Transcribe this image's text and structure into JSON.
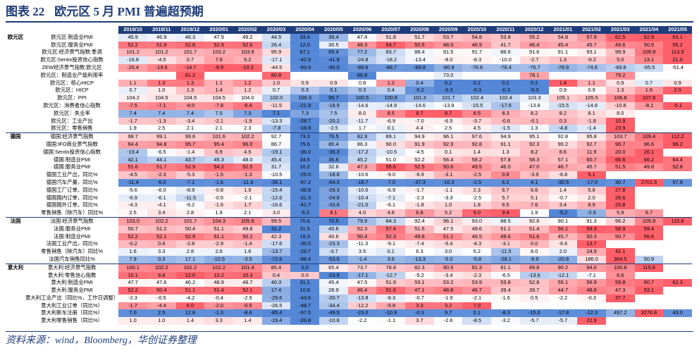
{
  "title": {
    "figure_no": "图表 22",
    "text": "欧元区 5 月 PMI 普遍超预期"
  },
  "source": "资料来源：wind，Bloomberg，华创证券整理",
  "colors": {
    "header": "#1f3d7a"
  },
  "months": [
    "2019/10",
    "2019/11",
    "2019/12",
    "2020/01",
    "2020/02",
    "2020/03",
    "2020/04",
    "2020/05",
    "2020/06",
    "2020/07",
    "2020/08",
    "2020/09",
    "2020/10",
    "2020/11",
    "2020/12",
    "2021/01",
    "2021/02",
    "2021/03",
    "2021/04",
    "2021/05"
  ],
  "rows": [
    {
      "group": "欧元区",
      "label": "欧元区:制造业PMI",
      "values": [
        "45.9",
        "46.9",
        "46.3",
        "47.9",
        "49.2",
        "44.5",
        "33.4",
        "39.4",
        "47.4",
        "51.8",
        "51.7",
        "53.7",
        "54.8",
        "53.8",
        "55.2",
        "54.8",
        "57.9",
        "62.5",
        "62.9",
        "63.1"
      ]
    },
    {
      "group": "",
      "label": "欧元区:服务业PMI",
      "values": [
        "52.2",
        "51.9",
        "52.8",
        "52.5",
        "52.6",
        "26.4",
        "12.0",
        "30.5",
        "48.3",
        "54.7",
        "50.5",
        "48.0",
        "46.9",
        "41.7",
        "46.4",
        "45.4",
        "45.7",
        "49.6",
        "50.5",
        "55.2"
      ]
    },
    {
      "group": "",
      "label": "欧元区:经济景气指数:季调",
      "values": [
        "101.2",
        "101.2",
        "101.7",
        "103.2",
        "103.9",
        "95.9",
        "67.1",
        "69.4",
        "77.2",
        "83.7",
        "88.4",
        "91.5",
        "91.7",
        "88.6",
        "91.6",
        "91.1",
        "93.1",
        "99.9",
        "109.9",
        "113.9"
      ]
    },
    {
      "group": "",
      "label": "欧元区:Sentix投资信心指数",
      "values": [
        "-16.8",
        "-4.5",
        "0.7",
        "7.6",
        "5.2",
        "-17.1",
        "-42.9",
        "-41.8",
        "-24.8",
        "-18.2",
        "-13.4",
        "-8.0",
        "-8.3",
        "-10.0",
        "-2.7",
        "1.3",
        "-0.2",
        "5.0",
        "13.1",
        "21.0"
      ]
    },
    {
      "group": "",
      "label": "ZEW经济景气指数:欧元区",
      "values": [
        "-26.4",
        "-19.6",
        "-14.7",
        "-9.9",
        "-10.3",
        "-44.5",
        "-93.9",
        "-95.0",
        "-89.6",
        "-88.7",
        "-89.8",
        "-80.9",
        "-76.6",
        "-76.4",
        "-75.7",
        "-78.9",
        "-74.6",
        "-69.8",
        "-65.5",
        "-51.4"
      ]
    },
    {
      "group": "",
      "label": "欧元区：制造业产能利用率",
      "values": [
        "",
        "",
        "81.2",
        "",
        "",
        "80.8",
        "",
        "",
        "66.8",
        "",
        "",
        "73.0",
        "",
        "",
        "78.1",
        "",
        "",
        "79.2",
        "",
        ""
      ]
    },
    {
      "group": "",
      "label": "欧元区：核心HICP",
      "values": [
        "1.1",
        "1.3",
        "1.3",
        "1.1",
        "1.2",
        "1.0",
        "0.9",
        "0.9",
        "0.8",
        "1.2",
        "0.4",
        "0.2",
        "0.2",
        "0.2",
        "0.2",
        "1.4",
        "1.1",
        "0.9",
        "0.7",
        "0.9"
      ]
    },
    {
      "group": "",
      "label": "欧元区：HICP",
      "values": [
        "0.7",
        "1.0",
        "1.3",
        "1.4",
        "1.2",
        "0.7",
        "0.3",
        "0.1",
        "0.3",
        "0.4",
        "-0.2",
        "-0.3",
        "-0.3",
        "-0.3",
        "-0.3",
        "0.9",
        "0.9",
        "1.3",
        "1.6",
        "2.0"
      ]
    },
    {
      "group": "",
      "label": "欧元区：PPI",
      "values": [
        "104.2",
        "104.5",
        "104.5",
        "104.5",
        "104.0",
        "102.0",
        "100.3",
        "99.7",
        "100.5",
        "100.6",
        "101.3",
        "101.7",
        "102.4",
        "102.4",
        "103.3",
        "105.1",
        "105.5",
        "106.8",
        "107.9",
        ""
      ]
    },
    {
      "group": "",
      "label": "欧元区：消费者信心指数",
      "values": [
        "-7.5",
        "-7.1",
        "-8.0",
        "-7.8",
        "-6.4",
        "-11.5",
        "-21.9",
        "-18.9",
        "-14.6",
        "-14.9",
        "-14.6",
        "-13.9",
        "-15.5",
        "-17.6",
        "-13.8",
        "-15.5",
        "-14.8",
        "-10.8",
        "-8.1",
        "-5.1"
      ]
    },
    {
      "group": "",
      "label": "欧元区：失业率",
      "values": [
        "7.4",
        "7.4",
        "7.4",
        "7.5",
        "7.3",
        "7.1",
        "7.3",
        "7.5",
        "8.0",
        "8.5",
        "8.7",
        "8.7",
        "8.5",
        "8.3",
        "8.2",
        "8.2",
        "8.1",
        "8.0",
        "",
        ""
      ]
    },
    {
      "group": "",
      "label": "欧元区：工业产出",
      "values": [
        "-1.7",
        "-1.3",
        "-3.4",
        "-2.1",
        "-1.9",
        "-13.3",
        "-28.7",
        "-20.2",
        "-11.7",
        "-6.9",
        "-7.0",
        "-6.5",
        "-3.7",
        "-0.6",
        "-0.1",
        "0.3",
        "-1.8",
        "10.9",
        "",
        ""
      ]
    },
    {
      "group": "",
      "label": "欧元区：零售销售",
      "values": [
        "1.9",
        "2.5",
        "2.1",
        "2.1",
        "2.3",
        "-7.8",
        "-18.8",
        "-2.5",
        "1.7",
        "0.1",
        "4.4",
        "2.5",
        "4.5",
        "-1.5",
        "1.3",
        "-4.8",
        "-1.4",
        "23.9",
        "",
        ""
      ]
    },
    {
      "group": "德国",
      "label": "德国:经济景气指数",
      "values": [
        "98.7",
        "99.1",
        "99.6",
        "101.6",
        "102.2",
        "92.7",
        "73.3",
        "76.5",
        "82.9",
        "89.1",
        "94.9",
        "96.1",
        "97.6",
        "94.9",
        "95.1",
        "92.8",
        "95.8",
        "103.7",
        "109.4",
        "112.2"
      ]
    },
    {
      "group": "",
      "label": "德国:IFO商业景气指数",
      "values": [
        "94.4",
        "94.8",
        "95.7",
        "95.4",
        "96.0",
        "86.7",
        "75.6",
        "80.4",
        "86.3",
        "90.0",
        "91.9",
        "92.9",
        "92.8",
        "91.1",
        "92.3",
        "90.2",
        "92.7",
        "96.7",
        "96.6",
        "99.2"
      ]
    },
    {
      "group": "",
      "label": "德国:Sentix投资信心指数",
      "values": [
        "-19.4",
        "-6.5",
        "-1.4",
        "6.9",
        "4.5",
        "-19.1",
        "-36.0",
        "-35.3",
        "-17.2",
        "-10.5",
        "-4.5",
        "0.1",
        "1.4",
        "1.3",
        "8.2",
        "8.6",
        "11.9",
        "20.0",
        "26.1",
        ""
      ]
    },
    {
      "group": "",
      "label": "德国:制造业PMI",
      "values": [
        "42.1",
        "44.1",
        "43.7",
        "45.3",
        "48.0",
        "45.4",
        "34.5",
        "36.6",
        "45.2",
        "51.0",
        "52.2",
        "56.4",
        "58.2",
        "57.8",
        "58.3",
        "57.1",
        "60.7",
        "66.6",
        "66.2",
        "64.4"
      ]
    },
    {
      "group": "",
      "label": "德国:服务业PMI",
      "values": [
        "51.6",
        "51.7",
        "52.9",
        "54.2",
        "52.5",
        "31.7",
        "16.2",
        "32.6",
        "47.3",
        "55.6",
        "52.5",
        "50.6",
        "49.5",
        "46.0",
        "47.0",
        "46.7",
        "45.7",
        "51.5",
        "49.8",
        "52.8"
      ]
    },
    {
      "group": "",
      "label": "德国工业产出，同比%",
      "values": [
        "-4.5",
        "-2.3",
        "-5.3",
        "-1.5",
        "-1.3",
        "-10.5",
        "-25.0",
        "-18.8",
        "-10.6",
        "-9.0",
        "-6.9",
        "-3.1",
        "-2.5",
        "0.8",
        "-3.9",
        "-6.8",
        "5.1",
        "",
        "",
        ""
      ]
    },
    {
      "group": "",
      "label": "德国汽车产量，同比%",
      "values": [
        "-11.4",
        "-6.0",
        "-7.1",
        "-1.6",
        "-11.6",
        "-36.1",
        "-97.2",
        "-64.3",
        "-18.7",
        "-7.0",
        "-37.3",
        "-10.3",
        "-2.5",
        "6.2",
        "4.1",
        "-30.5",
        "-17.0",
        "30.7",
        "2701.5",
        "57.8"
      ]
    },
    {
      "group": "",
      "label": "德国工厂订单，同比%",
      "values": [
        "-5.6",
        "-6.0",
        "-8.9",
        "-0.8",
        "1.9",
        "-15.4",
        "-36.9",
        "-29.3",
        "-10.6",
        "-6.9",
        "-1.7",
        "-1.1",
        "2.3",
        "6.7",
        "6.6",
        "1.4",
        "5.8",
        "27.8",
        "",
        ""
      ]
    },
    {
      "group": "",
      "label": "德国国内订单，同比%",
      "values": [
        "-6.9",
        "-6.1",
        "-11.5",
        "-0.5",
        "-2.1",
        "-12.6",
        "-31.3",
        "-24.8",
        "-10.4",
        "-7.1",
        "-2.3",
        "-3.3",
        "-2.5",
        "5.7",
        "5.1",
        "-0.7",
        "2.0",
        "26.6",
        "",
        ""
      ]
    },
    {
      "group": "",
      "label": "德国国外订单，同比%",
      "values": [
        "-4.3",
        "-4.1",
        "-9.2",
        "-1.6",
        "1.7",
        "-16.6",
        "-41.7",
        "-33.6",
        "-21.0",
        "-6.1",
        "-1.8",
        "1.0",
        "1.8",
        "6.5",
        "7.6",
        "3.4",
        "8.9",
        "25.8",
        "",
        ""
      ]
    },
    {
      "group": "",
      "label": "零售销售（除汽车）同比%",
      "values": [
        "2.5",
        "3.4",
        "2.8",
        "1.9",
        "2.1",
        "3.0",
        "-5.2",
        "8.1",
        "4.0",
        "4.8",
        "6.8",
        "5.2",
        "9.0",
        "9.4",
        "1.9",
        "-5.2",
        "-2.6",
        "5.9",
        "6.7",
        ""
      ]
    },
    {
      "group": "法国",
      "label": "法国:经济景气指数",
      "values": [
        "103.0",
        "102.2",
        "101.7",
        "104.3",
        "105.8",
        "99.5",
        "70.6",
        "70.5",
        "79.9",
        "84.3",
        "92.4",
        "96.1",
        "93.0",
        "88.5",
        "92.8",
        "90.1",
        "91.3",
        "96.2",
        "105.8",
        "110.8"
      ]
    },
    {
      "group": "",
      "label": "法国:服务业PMI",
      "values": [
        "50.7",
        "51.2",
        "50.4",
        "51.1",
        "49.8",
        "31.2",
        "31.5",
        "40.6",
        "52.3",
        "57.4",
        "51.5",
        "47.5",
        "49.6",
        "51.1",
        "51.4",
        "56.1",
        "59.3",
        "58.9",
        "59.4",
        ""
      ]
    },
    {
      "group": "",
      "label": "法国:制造业PMI",
      "values": [
        "52.2",
        "52.1",
        "52.9",
        "51.1",
        "50.2",
        "42.3",
        "16.3",
        "40.6",
        "50.4",
        "52.3",
        "49.8",
        "51.1",
        "46.5",
        "49.6",
        "51.6",
        "45.7",
        "50.3",
        "50.7",
        "56.6",
        ""
      ]
    },
    {
      "group": "",
      "label": "法国工业产出，同比%",
      "values": [
        "-0.2",
        "0.4",
        "-2.8",
        "-2.9",
        "-1.4",
        "-17.6",
        "-35.0",
        "-23.3",
        "-11.3",
        "-9.1",
        "-7.4",
        "-5.4",
        "-4.3",
        "-3.1",
        "0.0",
        "-6.6",
        "13.7",
        "",
        "",
        ""
      ]
    },
    {
      "group": "",
      "label": "零售销售（除汽车）同比%",
      "values": [
        "1.6",
        "3.3",
        "2.8",
        "2.6",
        "1.6",
        "-13.7",
        "-29.7",
        "-3.7",
        "3.5",
        "0.1",
        "6.3",
        "3.0",
        "5.2",
        "-11.5",
        "8.0",
        "2.0",
        "24.9",
        "42.1",
        "",
        ""
      ]
    },
    {
      "group": "",
      "label": "法国汽车销售同比%",
      "values": [
        "7.9",
        "0.3",
        "17.1",
        "-10.5",
        "-3.5",
        "-72.6",
        "-88.4",
        "-53.6",
        "-1.4",
        "3.6",
        "-13.3",
        "-5.0",
        "-5.8",
        "-28.1",
        "-9.9",
        "-20.8",
        "186.0",
        "364.5",
        "50.9",
        ""
      ]
    },
    {
      "group": "意大利",
      "label": "意大利:经济景气指数",
      "values": [
        "100.1",
        "102.2",
        "101.2",
        "102.2",
        "101.4",
        "85.4",
        "0.0",
        "65.4",
        "73.7",
        "78.8",
        "82.3",
        "90.5",
        "91.3",
        "81.1",
        "89.8",
        "90.2",
        "94.0",
        "100.8",
        "115.8",
        ""
      ]
    },
    {
      "group": "",
      "label": "意大利:零售信心指数",
      "values": [
        "10.1",
        "9.8",
        "12.0",
        "10.2",
        "10.3",
        "0.4",
        "0.0",
        "-23.9",
        "-17.1",
        "-12.7",
        "-5.2",
        "-3.4",
        "-2.3",
        "-6.5",
        "-13.6",
        "-12.1",
        "-7.1",
        "6.6",
        "",
        ""
      ]
    },
    {
      "group": "",
      "label": "意大利:制造业PMI",
      "values": [
        "47.7",
        "47.6",
        "46.2",
        "48.9",
        "48.7",
        "40.3",
        "31.1",
        "45.4",
        "47.5",
        "51.9",
        "53.1",
        "53.2",
        "53.9",
        "53.8",
        "52.8",
        "55.1",
        "56.9",
        "59.8",
        "60.7",
        "62.3"
      ]
    },
    {
      "group": "",
      "label": "意大利:服务业PMI",
      "values": [
        "52.2",
        "50.4",
        "51.1",
        "51.4",
        "52.1",
        "17.4",
        "10.8",
        "28.9",
        "46.4",
        "51.6",
        "47.1",
        "48.8",
        "46.7",
        "39.4",
        "39.7",
        "44.7",
        "48.8",
        "47.3",
        "53.1",
        ""
      ]
    },
    {
      "group": "",
      "label": "意大利工业产出（同比%，工作日调整）",
      "values": [
        "-2.3",
        "-0.5",
        "-4.2",
        "-0.4",
        "-2.9",
        "-29.6",
        "-43.6",
        "-20.7",
        "-13.8",
        "-8.3",
        "-0.7",
        "-1.9",
        "-2.1",
        "-1.6",
        "0.5",
        "-2.2",
        "-0.3",
        "37.7",
        "",
        ""
      ]
    },
    {
      "group": "",
      "label": "意大利工业订单（同比%）",
      "values": [
        "-1.7",
        "-4.4",
        "6.0",
        "-2.0",
        "-0.5",
        "-26.5",
        "-48.7",
        "-34.4",
        "-12.2",
        "-5.8",
        "3.3",
        "3.2",
        "7.0",
        "",
        "",
        "",
        "",
        "",
        "",
        ""
      ]
    },
    {
      "group": "",
      "label": "意大利新车注册（同比%）",
      "values": [
        "7.0",
        "2.5",
        "12.8",
        "-1.3",
        "-8.6",
        "-85.4",
        "-97.5",
        "-49.5",
        "-23.0",
        "-10.9",
        "-0.3",
        "9.7",
        "0.1",
        "-8.3",
        "-15.0",
        "-17.8",
        "-12.3",
        "497.2",
        "3276.8",
        "43.0"
      ]
    },
    {
      "group": "",
      "label": "意大利零售销售（同比%）",
      "values": [
        "1.0",
        "1.0",
        "1.4",
        "3.3",
        "1.4",
        "-19.4",
        "-26.8",
        "-10.8",
        "-2.2",
        "-1.1",
        "3.7",
        "-2.6",
        "-8.5",
        "-3.2",
        "-5.7",
        "-5.7",
        "22.9",
        "",
        "",
        ""
      ]
    }
  ]
}
